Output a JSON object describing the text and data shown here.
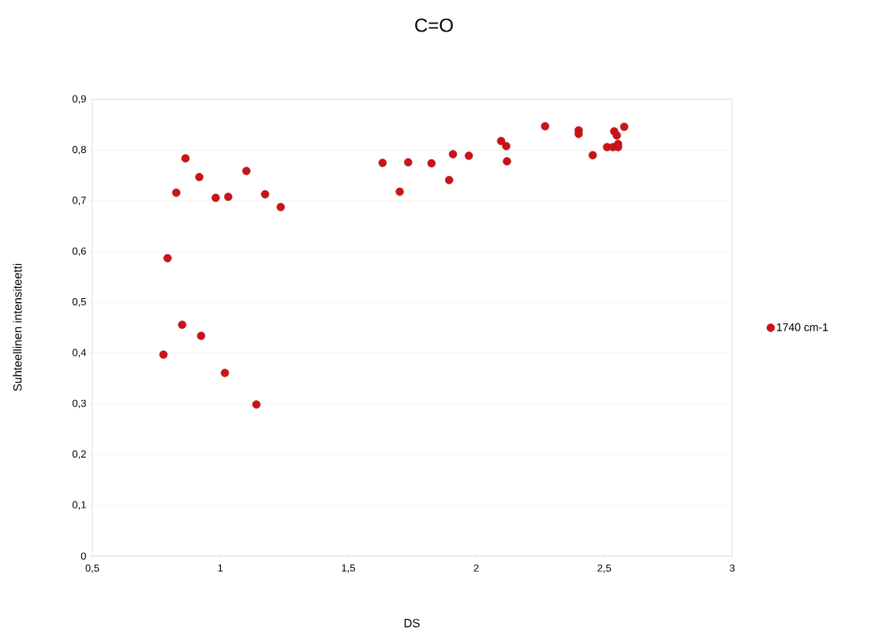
{
  "chart_data": {
    "type": "scatter",
    "title": "C=O",
    "xlabel": "DS",
    "ylabel": "Suhteellinen intensiteetti",
    "xlim": [
      0.5,
      3
    ],
    "ylim": [
      0,
      0.9
    ],
    "xticks": [
      {
        "value": 0.5,
        "label": "0,5"
      },
      1,
      {
        "value": 1.5,
        "label": "1,5"
      },
      2,
      {
        "value": 2.5,
        "label": "2,5"
      },
      3
    ],
    "yticks": [
      0,
      {
        "value": 0.1,
        "label": "0,1"
      },
      {
        "value": 0.2,
        "label": "0,2"
      },
      {
        "value": 0.3,
        "label": "0,3"
      },
      {
        "value": 0.4,
        "label": "0,4"
      },
      {
        "value": 0.5,
        "label": "0,5"
      },
      {
        "value": 0.6,
        "label": "0,6"
      },
      {
        "value": 0.7,
        "label": "0,7"
      },
      {
        "value": 0.8,
        "label": "0,8"
      },
      {
        "value": 0.9,
        "label": "0,9"
      }
    ],
    "grid": "y",
    "legend": "right",
    "marker": "circle",
    "series": [
      {
        "name": "1740 cm-1",
        "color": "#cc1418",
        "x": [
          0.864,
          0.918,
          0.828,
          0.982,
          1.031,
          1.102,
          1.175,
          1.236,
          0.794,
          0.851,
          0.925,
          0.778,
          1.018,
          1.141,
          1.634,
          1.734,
          1.825,
          1.701,
          1.909,
          1.971,
          1.894,
          2.097,
          2.117,
          2.12,
          2.269,
          2.4,
          2.4,
          2.455,
          2.511,
          2.534,
          2.554,
          2.539,
          2.549,
          2.578,
          2.554
        ],
        "values": [
          0.784,
          0.747,
          0.716,
          0.706,
          0.708,
          0.759,
          0.713,
          0.688,
          0.587,
          0.456,
          0.434,
          0.397,
          0.361,
          0.299,
          0.775,
          0.776,
          0.774,
          0.718,
          0.792,
          0.789,
          0.741,
          0.818,
          0.808,
          0.778,
          0.847,
          0.839,
          0.832,
          0.79,
          0.806,
          0.806,
          0.806,
          0.837,
          0.829,
          0.846,
          0.812
        ]
      }
    ]
  }
}
